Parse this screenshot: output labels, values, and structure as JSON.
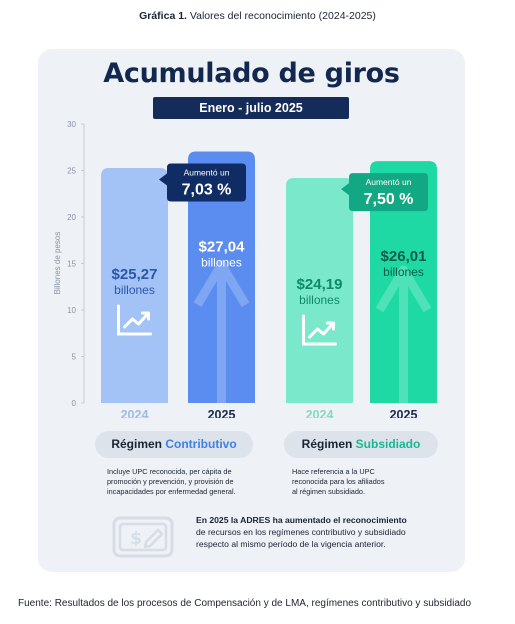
{
  "caption": {
    "label": "Gráfica 1.",
    "text": " Valores del reconocimiento (2024-2025)"
  },
  "header": {
    "title": "Acumulado de giros",
    "period": "Enero - julio 2025"
  },
  "chart_data": {
    "type": "bar",
    "title": "Acumulado de giros",
    "subtitle": "Enero - julio 2025",
    "ylabel": "Billones de pesos",
    "ylim": [
      0,
      30
    ],
    "yticks": [
      "0",
      "5",
      "10",
      "15",
      "20",
      "25",
      "30"
    ],
    "grid": false,
    "groups": [
      {
        "name_prefix": "Régimen ",
        "name_accent": "Contributivo",
        "bars": [
          {
            "year": "2024",
            "value": 25.27,
            "value_label": "$25,27",
            "unit_label": "billones",
            "color": "#a3c2f6",
            "text_color": "#2c56a8"
          },
          {
            "year": "2025",
            "value": 27.04,
            "value_label": "$27,04",
            "unit_label": "billones",
            "color": "#5b8df0",
            "text_color": "#ffffff"
          }
        ],
        "badge": {
          "line1": "Aumentó un",
          "line2": "7,03 %",
          "color": "#0f2c64"
        }
      },
      {
        "name_prefix": "Régimen ",
        "name_accent": "Subsidiado",
        "bars": [
          {
            "year": "2024",
            "value": 24.19,
            "value_label": "$24,19",
            "unit_label": "billones",
            "color": "#7ae9cb",
            "text_color": "#0e8a66"
          },
          {
            "year": "2025",
            "value": 26.01,
            "value_label": "$26,01",
            "unit_label": "billones",
            "color": "#1ed9a4",
            "text_color": "#0f5c48"
          }
        ],
        "badge": {
          "line1": "Aumentó un",
          "line2": "7,50 %",
          "color": "#11a883"
        }
      }
    ]
  },
  "notes": {
    "contributivo": [
      "Incluye UPC reconocida, per cápita de",
      "promoción y prevención, y provisión de",
      "incapacidades por enfermedad general."
    ],
    "subsidiado": [
      "Hace referencia a la UPC",
      "reconocida para los afiliados",
      "al régimen subsidiado."
    ]
  },
  "summary": {
    "bold": "En 2025 la ADRES ha aumentado el reconocimiento",
    "lines": [
      "de recursos en los regímenes contributivo y subsidiado",
      "respecto al mismo período de la vigencia anterior."
    ]
  },
  "source": "Fuente: Resultados de los procesos de Compensación y de LMA, regímenes contributivo y subsidiado"
}
